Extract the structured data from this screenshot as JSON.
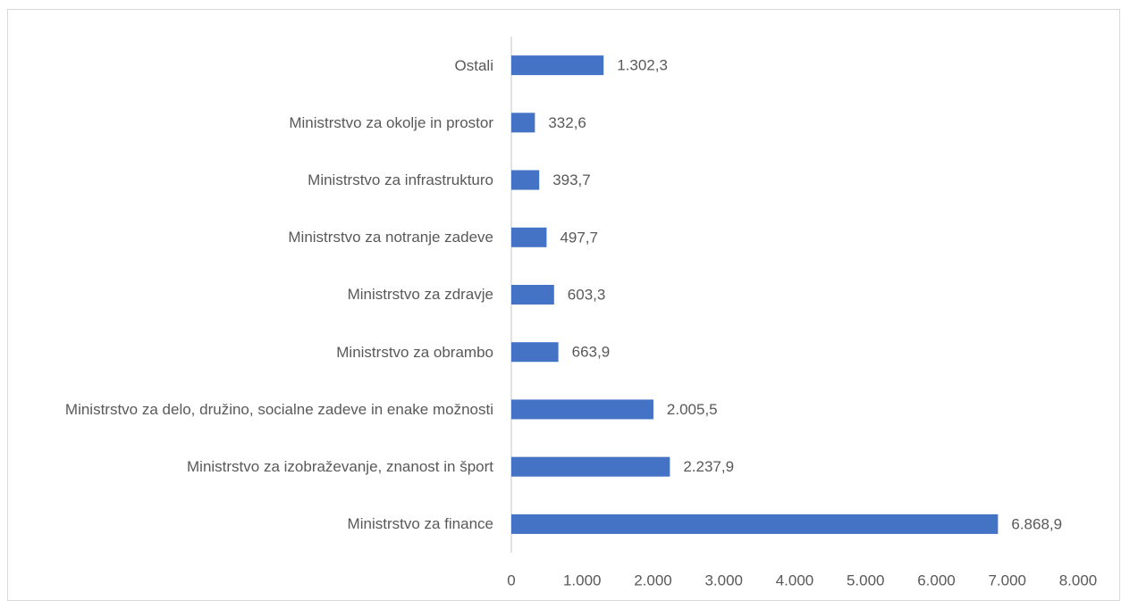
{
  "chart_data": {
    "type": "barh",
    "categories": [
      "Ostali",
      "Ministrstvo za okolje in prostor",
      "Ministrstvo za infrastrukturo",
      "Ministrstvo za notranje zadeve",
      "Ministrstvo za zdravje",
      "Ministrstvo za obrambo",
      "Ministrstvo za delo, družino, socialne zadeve in enake možnosti",
      "Ministrstvo za izobraževanje, znanost in šport",
      "Ministrstvo za finance"
    ],
    "values": [
      1302.3,
      332.6,
      393.7,
      497.7,
      603.3,
      663.9,
      2005.5,
      2237.9,
      6868.9
    ],
    "value_labels": [
      "1.302,3",
      "332,6",
      "393,7",
      "497,7",
      "603,3",
      "663,9",
      "2.005,5",
      "2.237,9",
      "6.868,9"
    ],
    "color": "#4472c4",
    "xlim": [
      0,
      8000
    ],
    "xticks": [
      0,
      {
        "value": 1000,
        "label": "1.000"
      },
      {
        "value": 2000,
        "label": "2.000"
      },
      {
        "value": 3000,
        "label": "3.000"
      },
      {
        "value": 4000,
        "label": "4.000"
      },
      {
        "value": 5000,
        "label": "5.000"
      },
      {
        "value": 6000,
        "label": "6.000"
      },
      {
        "value": 7000,
        "label": "7.000"
      },
      {
        "value": 8000,
        "label": "8.000"
      }
    ]
  }
}
